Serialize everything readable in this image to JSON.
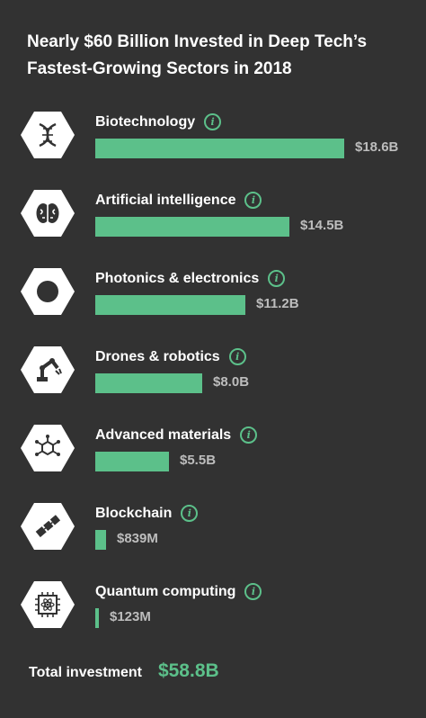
{
  "chart_data": {
    "type": "bar",
    "orientation": "horizontal",
    "title_lines": [
      "Nearly $60 Billion Invested in Deep Tech’s",
      "Fastest-Growing Sectors in 2018"
    ],
    "categories": [
      "Biotechnology",
      "Artificial intelligence",
      "Photonics & electronics",
      "Drones & robotics",
      "Advanced materials",
      "Blockchain",
      "Quantum computing"
    ],
    "values": [
      18.6,
      14.5,
      11.2,
      8.0,
      5.5,
      0.839,
      0.123
    ],
    "value_labels": [
      "$18.6B",
      "$14.5B",
      "$11.2B",
      "$8.0B",
      "$5.5B",
      "$839M",
      "$123M"
    ],
    "unit": "billion USD",
    "icons": [
      "dna-icon",
      "brain-icon",
      "chip-icon",
      "robot-arm-icon",
      "molecule-icon",
      "blockchain-icon",
      "quantum-chip-icon"
    ],
    "info_glyph": "i",
    "bar_color": "#5cc08a",
    "grid": false
  },
  "total": {
    "label": "Total investment",
    "value": "$58.8B"
  },
  "colors": {
    "background": "#323232",
    "accent": "#5cc08a",
    "value_text": "#bdbdbd"
  }
}
